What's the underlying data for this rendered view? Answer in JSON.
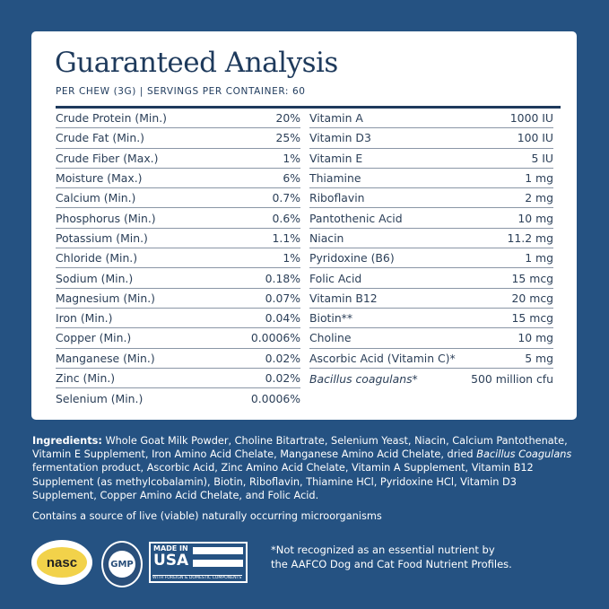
{
  "card": {
    "title": "Guaranteed Analysis",
    "subtitle": "PER CHEW (3G) | SERVINGS PER CONTAINER: 60",
    "left": [
      {
        "name": "Crude Protein (Min.)",
        "value": "20%"
      },
      {
        "name": "Crude Fat (Min.)",
        "value": "25%"
      },
      {
        "name": "Crude Fiber (Max.)",
        "value": "1%"
      },
      {
        "name": "Moisture (Max.)",
        "value": "6%"
      },
      {
        "name": "Calcium (Min.)",
        "value": "0.7%"
      },
      {
        "name": "Phosphorus (Min.)",
        "value": "0.6%"
      },
      {
        "name": "Potassium (Min.)",
        "value": "1.1%"
      },
      {
        "name": "Chloride (Min.)",
        "value": "1%"
      },
      {
        "name": "Sodium (Min.)",
        "value": "0.18%"
      },
      {
        "name": "Magnesium (Min.)",
        "value": "0.07%"
      },
      {
        "name": "Iron (Min.)",
        "value": "0.04%"
      },
      {
        "name": "Copper (Min.)",
        "value": "0.0006%"
      },
      {
        "name": "Manganese (Min.)",
        "value": "0.02%"
      },
      {
        "name": "Zinc (Min.)",
        "value": "0.02%"
      },
      {
        "name": "Selenium (Min.)",
        "value": "0.0006%"
      }
    ],
    "right": [
      {
        "name": "Vitamin A",
        "value": "1000 IU"
      },
      {
        "name": "Vitamin D3",
        "value": "100 IU"
      },
      {
        "name": "Vitamin E",
        "value": "5 IU"
      },
      {
        "name": "Thiamine",
        "value": "1 mg"
      },
      {
        "name": "Riboflavin",
        "value": "2 mg"
      },
      {
        "name": "Pantothenic Acid",
        "value": "10 mg"
      },
      {
        "name": "Niacin",
        "value": "11.2 mg"
      },
      {
        "name": "Pyridoxine (B6)",
        "value": "1 mg"
      },
      {
        "name": "Folic Acid",
        "value": "15 mcg"
      },
      {
        "name": "Vitamin B12",
        "value": "20 mcg"
      },
      {
        "name": "Biotin**",
        "value": "15 mcg"
      },
      {
        "name": "Choline",
        "value": "10 mg"
      },
      {
        "name": "Ascorbic Acid (Vitamin C)*",
        "value": "5 mg"
      },
      {
        "name": "Bacillus coagulans*",
        "value": "500 million cfu",
        "italic": true
      }
    ]
  },
  "ingredients": {
    "label": "Ingredients:",
    "text1": " Whole Goat Milk Powder, Choline Bitartrate, Selenium Yeast, Niacin, Calcium Pantothenate, Vitamin E Supplement, Iron Amino Acid Chelate, Manganese Amino Acid Chelate, dried ",
    "italic": "Bacillus Coagulans",
    "text2": " fermentation product, Ascorbic Acid, Zinc Amino Acid Chelate, Vitamin A Supplement, Vitamin B12 Supplement (as methylcobalamin), Biotin, Riboflavin, Thiamine HCl, Pyridoxine HCl, Vitamin D3 Supplement, Copper Amino Acid Chelate, and Folic Acid."
  },
  "live_note": "Contains a source of live (viable) naturally occurring microorganisms",
  "footnote": {
    "line1": "*Not recognized as an essential nutrient by",
    "line2": "the AAFCO Dog and Cat Food Nutrient Profiles."
  },
  "badges": {
    "nasc": "nasc",
    "gmp": "GMP",
    "usa_made": "MADE IN",
    "usa": "USA",
    "usa_fine": "WITH FOREIGN & DOMESTIC COMPONENTS"
  },
  "colors": {
    "background": "#255282",
    "card": "#ffffff",
    "text": "#1e3a5c"
  }
}
